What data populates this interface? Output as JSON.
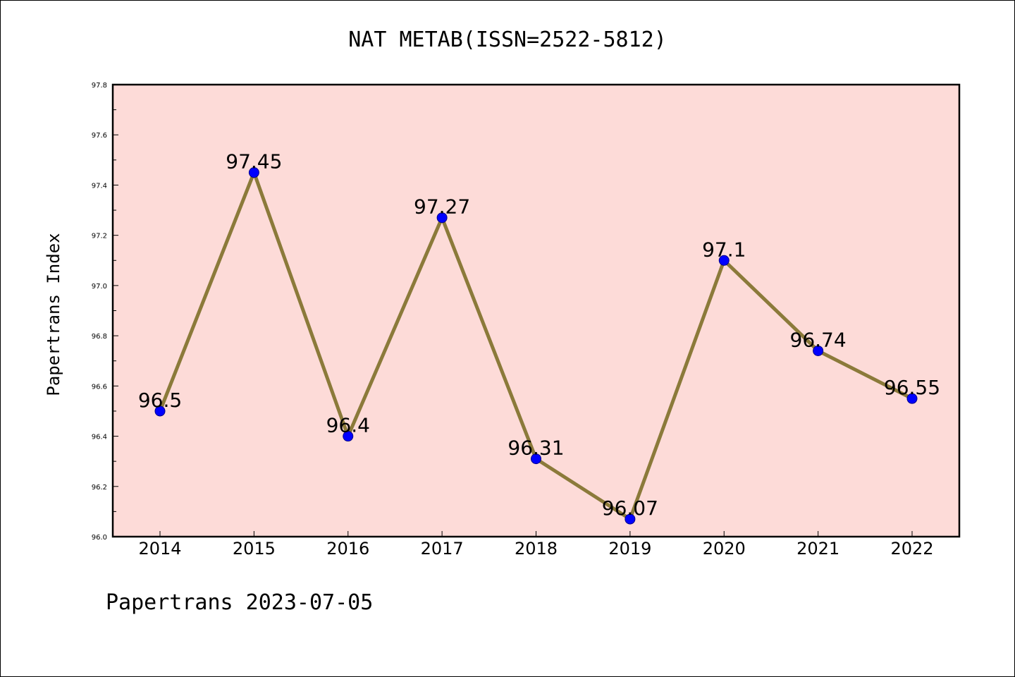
{
  "chart_data": {
    "type": "line",
    "title": "NAT METAB(ISSN=2522-5812)",
    "xlabel": "",
    "ylabel": "Papertrans Index",
    "categories": [
      "2014",
      "2015",
      "2016",
      "2017",
      "2018",
      "2019",
      "2020",
      "2021",
      "2022"
    ],
    "values": [
      96.5,
      97.45,
      96.4,
      97.27,
      96.31,
      96.07,
      97.1,
      96.74,
      96.55
    ],
    "data_labels": [
      "96.5",
      "97.45",
      "96.4",
      "97.27",
      "96.31",
      "96.07",
      "97.1",
      "96.74",
      "96.55"
    ],
    "ylim": [
      96.0,
      97.8
    ],
    "yticks": [
      "96.0",
      "96.2",
      "96.4",
      "96.6",
      "96.8",
      "97.0",
      "97.2",
      "97.4",
      "97.6",
      "97.8"
    ],
    "grid": false,
    "legend": "none",
    "colors": {
      "plot_background": "#fddbd8",
      "line": "#8b7a3a",
      "marker": "#0000ff"
    }
  },
  "footer": "Papertrans 2023-07-05"
}
